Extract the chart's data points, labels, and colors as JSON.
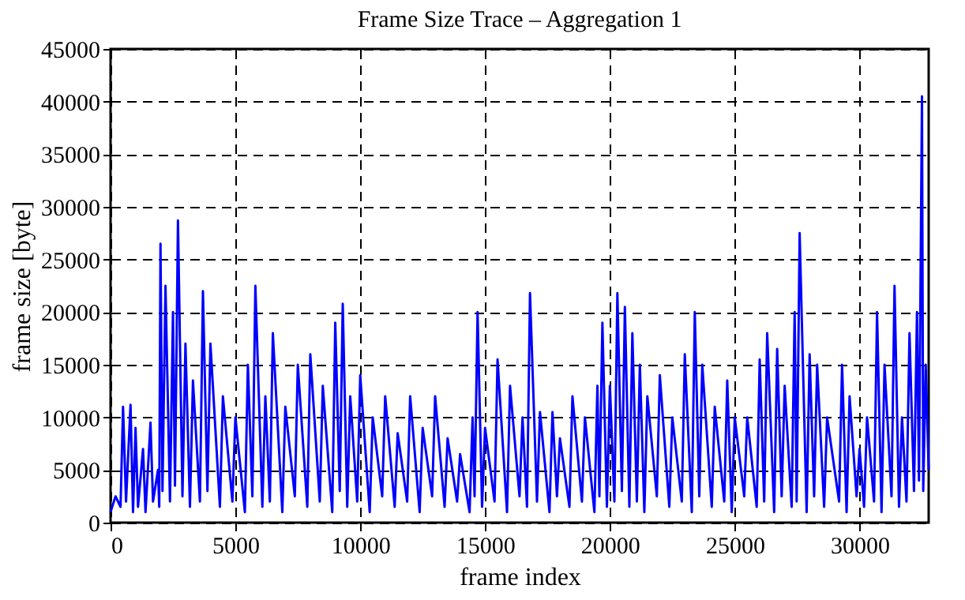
{
  "chart_data": {
    "type": "line",
    "title": "Frame Size Trace – Aggregation 1",
    "xlabel": "frame index",
    "ylabel": "frame size [byte]",
    "x": [
      0,
      200,
      400,
      500,
      620,
      800,
      900,
      1000,
      1100,
      1300,
      1400,
      1600,
      1700,
      1900,
      1950,
      2000,
      2080,
      2200,
      2380,
      2500,
      2580,
      2700,
      2880,
      3000,
      3180,
      3300,
      3580,
      3700,
      3880,
      4000,
      4380,
      4500,
      4880,
      5000,
      5380,
      5500,
      5680,
      5800,
      6080,
      6200,
      6380,
      6500,
      6880,
      7000,
      7380,
      7500,
      7880,
      8000,
      8380,
      8500,
      8880,
      9000,
      9180,
      9300,
      9480,
      9600,
      9880,
      10000,
      10380,
      10500,
      10880,
      11000,
      11380,
      11500,
      11880,
      12000,
      12380,
      12500,
      12880,
      13000,
      13380,
      13500,
      13880,
      14000,
      14380,
      14500,
      14580,
      14700,
      14880,
      15000,
      15380,
      15500,
      15880,
      16000,
      16380,
      16500,
      16680,
      16800,
      17080,
      17200,
      17580,
      17700,
      17880,
      18000,
      18380,
      18500,
      18880,
      19000,
      19380,
      19500,
      19580,
      19700,
      19880,
      20000,
      20180,
      20300,
      20480,
      20600,
      20780,
      20900,
      21080,
      21200,
      21380,
      21500,
      21880,
      22000,
      22380,
      22500,
      22880,
      23000,
      23280,
      23400,
      23580,
      23700,
      24080,
      24200,
      24580,
      24700,
      24880,
      25000,
      25380,
      25500,
      25880,
      26000,
      26180,
      26300,
      26580,
      26700,
      26880,
      27000,
      27280,
      27400,
      27480,
      27600,
      27880,
      28000,
      28180,
      28300,
      28580,
      28700,
      29180,
      29300,
      29480,
      29600,
      29880,
      30000,
      30180,
      30300,
      30580,
      30700,
      30880,
      31000,
      31280,
      31400,
      31580,
      31700,
      31880,
      32000,
      32180,
      32300,
      32380,
      32500,
      32550,
      32650,
      32768
    ],
    "series": [
      {
        "color": "#0000ff",
        "values": [
          1000,
          2500,
          1500,
          11000,
          2000,
          11200,
          1000,
          9000,
          1500,
          7000,
          1000,
          9500,
          2000,
          5000,
          1500,
          26500,
          3000,
          22500,
          2000,
          20000,
          3500,
          28700,
          2500,
          17000,
          1500,
          13500,
          2000,
          22000,
          3000,
          17000,
          1500,
          12000,
          2000,
          10000,
          1000,
          15000,
          2500,
          22500,
          1500,
          12000,
          2000,
          18000,
          1000,
          11000,
          2500,
          15000,
          1500,
          16000,
          2000,
          13000,
          1000,
          19000,
          3000,
          20800,
          1500,
          12000,
          2000,
          14000,
          1000,
          10000,
          2500,
          12000,
          1500,
          8500,
          2000,
          12000,
          1000,
          9000,
          2500,
          12000,
          1500,
          8000,
          2000,
          6500,
          1000,
          10000,
          2500,
          20000,
          1500,
          9000,
          2000,
          15500,
          1000,
          13000,
          2500,
          10000,
          1500,
          21800,
          2000,
          10500,
          1000,
          10500,
          2500,
          8000,
          1500,
          12000,
          2000,
          10000,
          1000,
          13000,
          2500,
          19000,
          1500,
          13000,
          2000,
          21800,
          3000,
          20500,
          1500,
          18000,
          2000,
          15000,
          1000,
          12000,
          2500,
          14000,
          1500,
          10000,
          2000,
          16000,
          1000,
          20000,
          2500,
          15000,
          1500,
          11000,
          2000,
          13500,
          1000,
          10000,
          2500,
          10000,
          1500,
          15500,
          2000,
          18000,
          1000,
          16500,
          2500,
          13000,
          1500,
          20000,
          2000,
          27500,
          1000,
          16000,
          2500,
          15000,
          1500,
          10000,
          2000,
          15000,
          1000,
          12000,
          2500,
          7000,
          1500,
          10000,
          2000,
          20000,
          1000,
          15000,
          2500,
          22500,
          1500,
          10000,
          2000,
          18000,
          3000,
          20000,
          4000,
          40500,
          3000,
          15000,
          5000
        ]
      }
    ],
    "xlim": [
      0,
      32768
    ],
    "xticks": [
      0,
      5000,
      10000,
      15000,
      20000,
      25000,
      30000
    ],
    "ylim": [
      0,
      45000
    ],
    "yticks": [
      0,
      5000,
      10000,
      15000,
      20000,
      25000,
      30000,
      35000,
      40000,
      45000
    ],
    "grid": true,
    "line_style": "solid"
  }
}
